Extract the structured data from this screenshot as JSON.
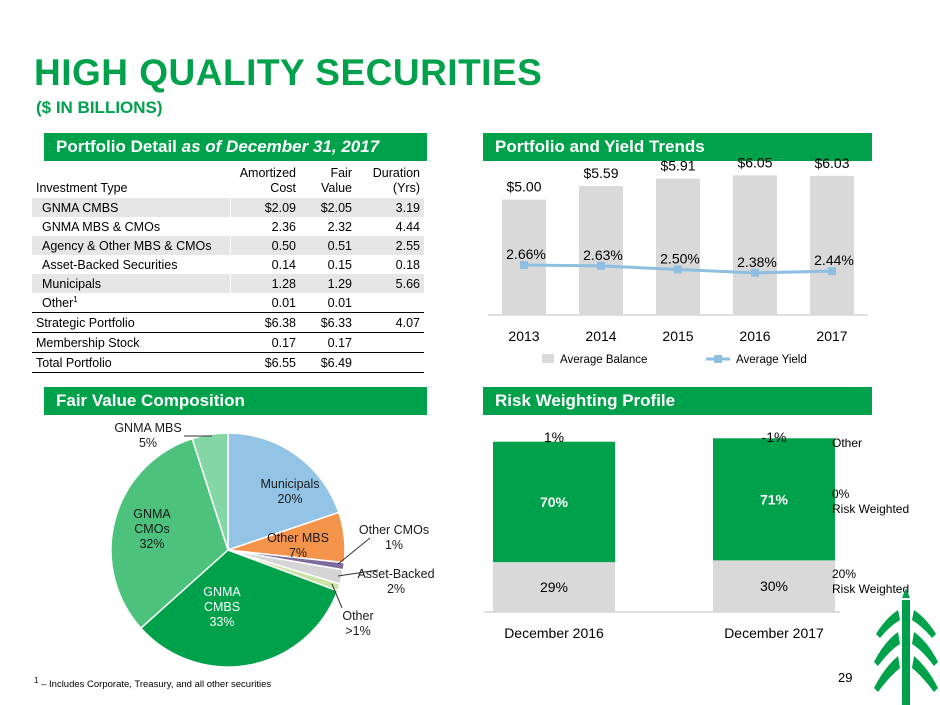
{
  "page": {
    "title": "HIGH QUALITY SECURITIES",
    "subtitle": "($ IN BILLIONS)",
    "page_number": "29",
    "footnote_marker": "1",
    "footnote_text": " – Includes Corporate, Treasury, and all other securities",
    "colors": {
      "brand_green": "#00a14b",
      "gray": "#d9d9d9",
      "line_blue": "#8fbfe0"
    }
  },
  "sections": {
    "portfolio_detail": {
      "title": "Portfolio Detail",
      "title_italic": "as of December 31, 2017"
    },
    "trends": {
      "title": "Portfolio and Yield Trends"
    },
    "fair_value": {
      "title": "Fair Value Composition"
    },
    "risk": {
      "title": "Risk Weighting Profile"
    }
  },
  "table": {
    "headers": {
      "type": "Investment Type",
      "amortized_1": "Amortized",
      "amortized_2": "Cost",
      "fair_1": "Fair",
      "fair_2": "Value",
      "duration_1": "Duration",
      "duration_2": "(Yrs)"
    },
    "rows": [
      {
        "name": "GNMA CMBS",
        "amortized": "$2.09",
        "fair": "$2.05",
        "duration": "3.19"
      },
      {
        "name": "GNMA MBS & CMOs",
        "amortized": "2.36",
        "fair": "2.32",
        "duration": "4.44"
      },
      {
        "name": "Agency & Other MBS & CMOs",
        "amortized": "0.50",
        "fair": "0.51",
        "duration": "2.55"
      },
      {
        "name": "Asset-Backed Securities",
        "amortized": "0.14",
        "fair": "0.15",
        "duration": "0.18"
      },
      {
        "name": "Municipals",
        "amortized": "1.28",
        "fair": "1.29",
        "duration": "5.66"
      },
      {
        "name": "Other",
        "name_sup": "1",
        "amortized": "0.01",
        "fair": "0.01",
        "duration": ""
      },
      {
        "name": "Strategic Portfolio",
        "amortized": "$6.38",
        "fair": "$6.33",
        "duration": "4.07"
      },
      {
        "name": "Membership Stock",
        "amortized": "0.17",
        "fair": "0.17",
        "duration": ""
      },
      {
        "name": "Total Portfolio",
        "amortized": "$6.55",
        "fair": "$6.49",
        "duration": ""
      }
    ]
  },
  "chart_data": [
    {
      "id": "trends",
      "type": "bar",
      "categories": [
        "2013",
        "2014",
        "2015",
        "2016",
        "2017"
      ],
      "series": [
        {
          "name": "Average Balance",
          "values": [
            5.0,
            5.59,
            5.91,
            6.05,
            6.03
          ],
          "labels": [
            "$5.00",
            "$5.59",
            "$5.91",
            "$6.05",
            "$6.03"
          ],
          "color": "#d9d9d9"
        },
        {
          "name": "Average Yield",
          "type": "line",
          "values": [
            2.66,
            2.63,
            2.5,
            2.38,
            2.44
          ],
          "labels": [
            "2.66%",
            "2.63%",
            "2.50%",
            "2.38%",
            "2.44%"
          ],
          "color": "#8fbfe0"
        }
      ],
      "ylim": [
        0,
        6.5
      ],
      "legend": "bottom"
    },
    {
      "id": "fair_value",
      "type": "pie",
      "slices": [
        {
          "label": "Municipals",
          "pct": "20%",
          "value": 20,
          "color": "#93c4e6"
        },
        {
          "label": "Other MBS",
          "pct": "7%",
          "value": 7,
          "color": "#f4944a"
        },
        {
          "label": "Other CMOs",
          "pct": "1%",
          "value": 1,
          "color": "#7f6a9c"
        },
        {
          "label": "Asset-Backed",
          "pct": "2%",
          "value": 2,
          "color": "#d5d5d5"
        },
        {
          "label": "Other",
          "pct": ">1%",
          "value": 1,
          "color": "#c9e3a6"
        },
        {
          "label": "GNMA CMBS",
          "pct": "33%",
          "value": 33,
          "color": "#00a14b"
        },
        {
          "label": "GNMA CMOs",
          "pct": "32%",
          "value": 32,
          "color": "#4cc27d"
        },
        {
          "label": "GNMA MBS",
          "pct": "5%",
          "value": 5,
          "color": "#85d6a5"
        }
      ]
    },
    {
      "id": "risk",
      "type": "bar",
      "stacked": true,
      "categories": [
        "December 2016",
        "December 2017"
      ],
      "series": [
        {
          "name": "20% Risk Weighted",
          "label_line1": "20%",
          "label_line2": "Risk Weighted",
          "values": [
            29,
            30
          ],
          "labels": [
            "29%",
            "30%"
          ],
          "color": "#d9d9d9"
        },
        {
          "name": "0% Risk Weighted",
          "label_line1": "0%",
          "label_line2": "Risk Weighted",
          "values": [
            70,
            71
          ],
          "labels": [
            "70%",
            "71%"
          ],
          "color": "#00a14b"
        },
        {
          "name": "Other",
          "label_line1": "Other",
          "values": [
            1,
            -1
          ],
          "labels": [
            "1%",
            "-1%"
          ],
          "color": "#ffffff"
        }
      ]
    }
  ]
}
